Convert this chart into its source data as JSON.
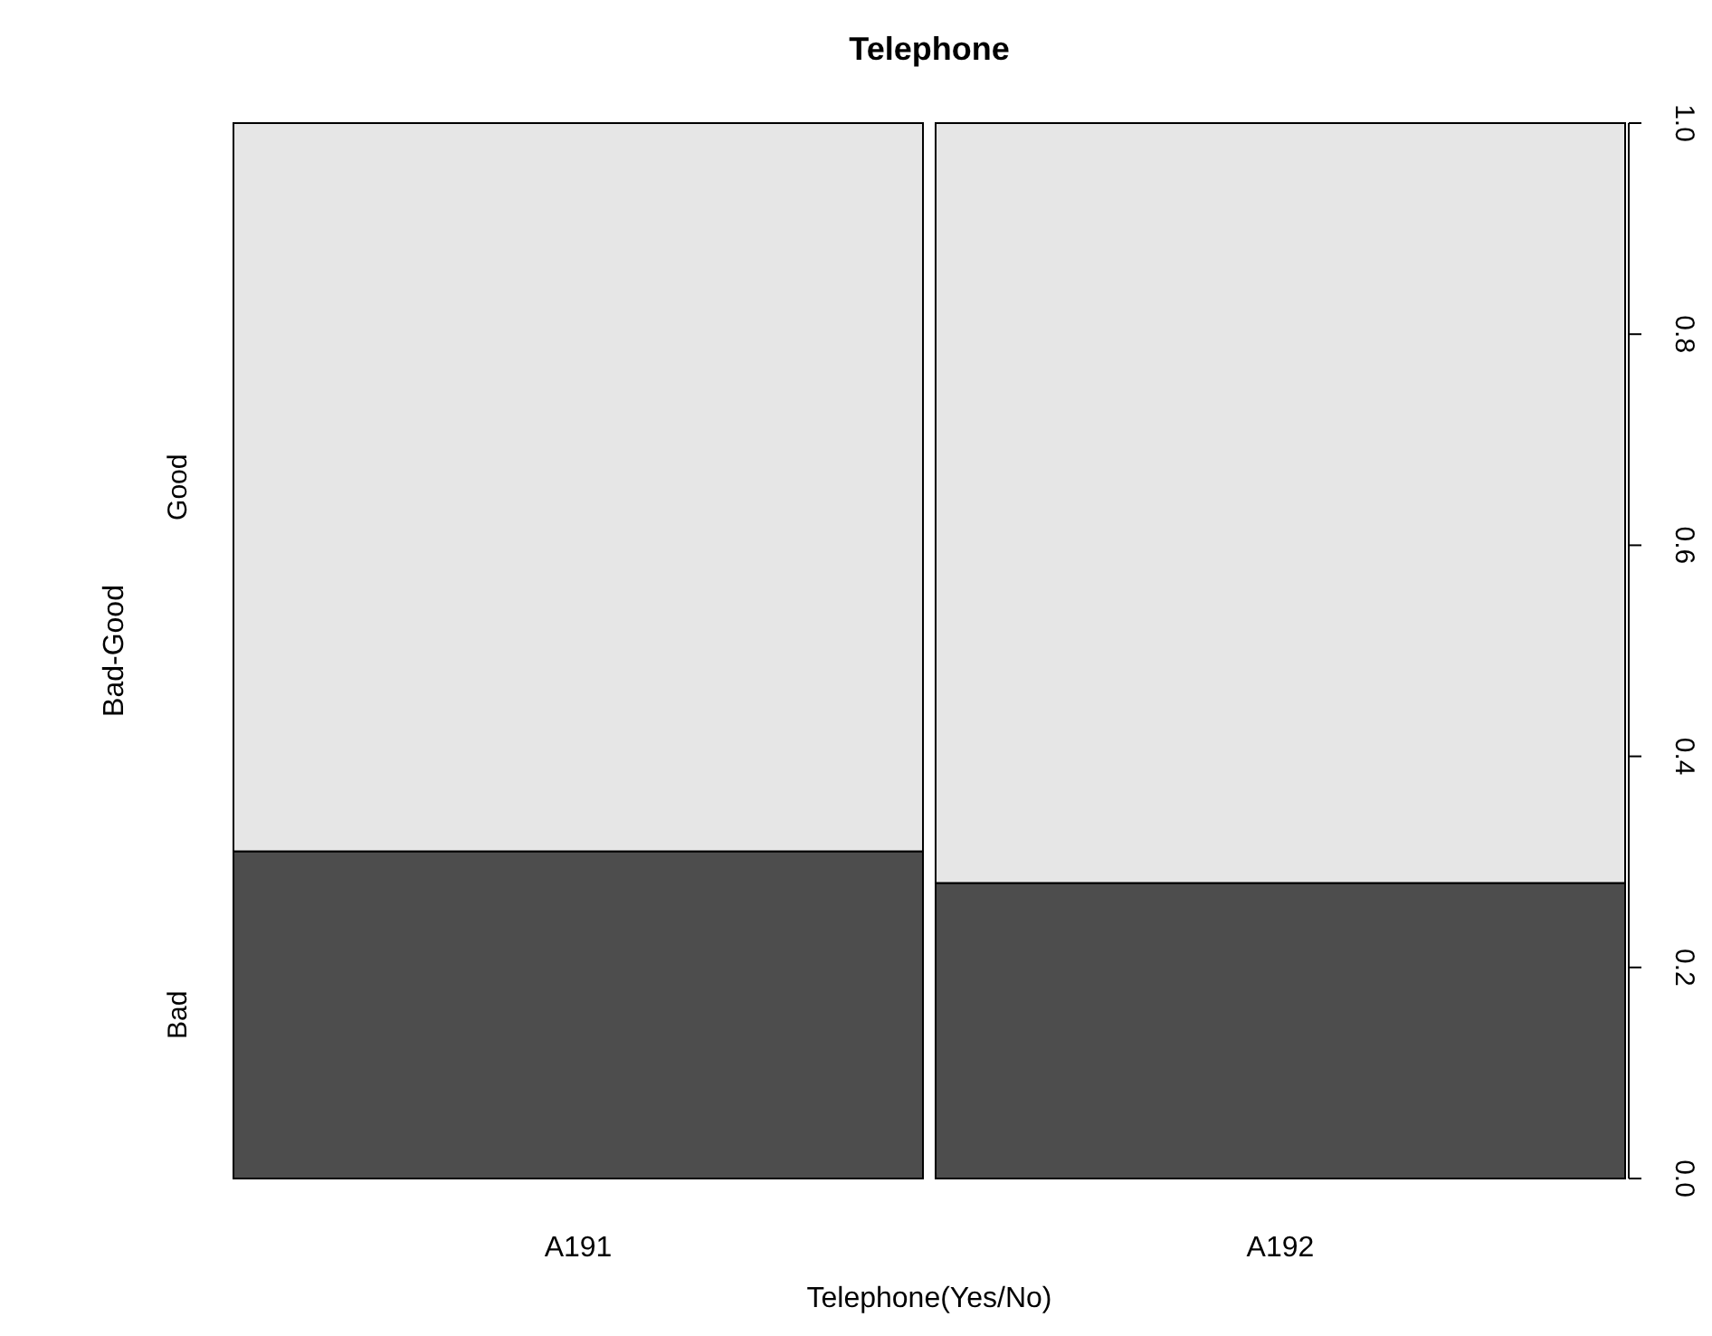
{
  "chart_data": {
    "type": "bar",
    "stacked": true,
    "title": "Telephone",
    "xlabel": "Telephone(Yes/No)",
    "ylabel": "Bad-Good",
    "categories": [
      "A191",
      "A192"
    ],
    "series": [
      {
        "name": "Bad",
        "color": "#4d4d4d",
        "values": [
          0.31,
          0.28
        ]
      },
      {
        "name": "Good",
        "color": "#e6e6e6",
        "values": [
          0.69,
          0.72
        ]
      }
    ],
    "ylim": [
      0,
      1
    ],
    "yticks": [
      {
        "value": 0,
        "label": "0.0"
      },
      {
        "value": 0.2,
        "label": "0.2"
      },
      {
        "value": 0.4,
        "label": "0.4"
      },
      {
        "value": 0.6,
        "label": "0.6"
      },
      {
        "value": 0.8,
        "label": "0.8"
      },
      {
        "value": 1,
        "label": "1.0"
      }
    ],
    "grid": false
  }
}
